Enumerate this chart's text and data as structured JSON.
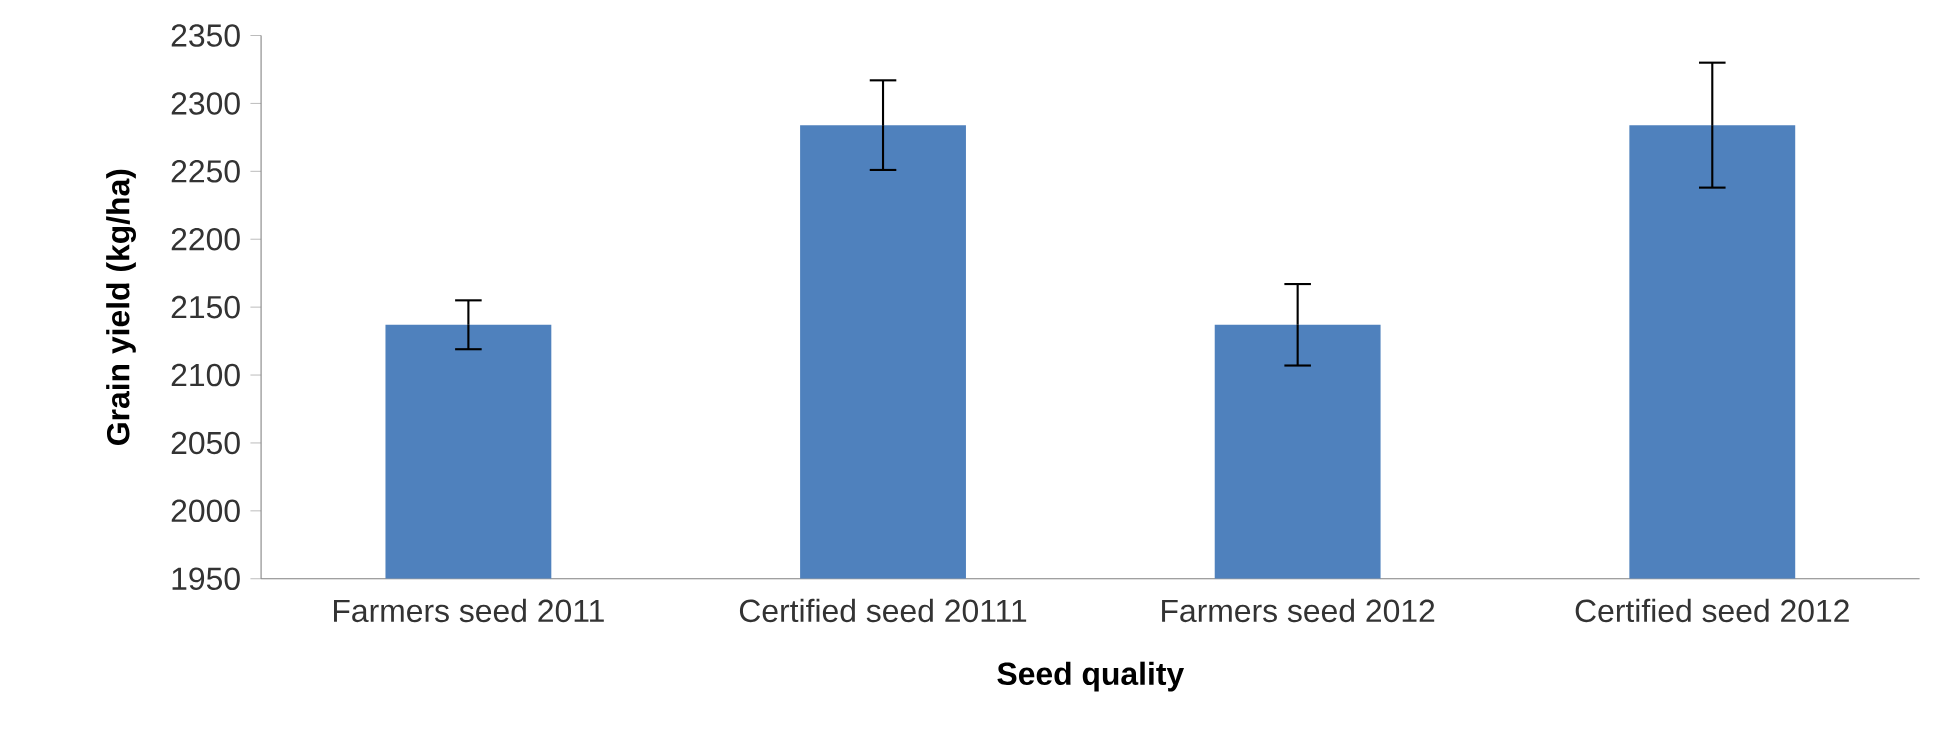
{
  "chart_data": {
    "type": "bar",
    "xlabel": "Seed quality",
    "ylabel": "Grain yield (kg/ha)",
    "categories": [
      "Farmers seed 2011",
      "Certified seed 20111",
      "Farmers seed 2012",
      "Certified seed 2012"
    ],
    "values": [
      2137,
      2284,
      2137,
      2284
    ],
    "errors": [
      18,
      33,
      30,
      46
    ],
    "color": "#4f81bd",
    "ylim": [
      1950,
      2350
    ],
    "yticks": [
      1950,
      2000,
      2050,
      2100,
      2150,
      2200,
      2250,
      2300,
      2350
    ],
    "grid": false
  }
}
